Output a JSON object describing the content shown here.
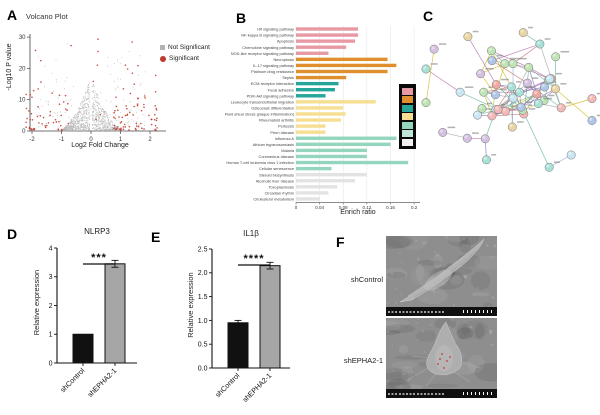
{
  "panels": {
    "a": {
      "label": "A",
      "title": "Volcano Plot"
    },
    "b": {
      "label": "B",
      "legend_colors": [
        "#e89aa4",
        "#df8f2d",
        "#26a69a",
        "#f6de92",
        "#93d5bd",
        "#bfe6d8",
        "#f2f2f2"
      ]
    },
    "c": {
      "label": "C",
      "network": {
        "seed": 7,
        "node_count": 48,
        "cluster_count": 34,
        "node_colors": [
          "#bfe3b4",
          "#f4b8b8",
          "#aec6e8",
          "#e8d5a3",
          "#a8e0d8",
          "#d4c1e0",
          "#f0a8a0",
          "#c9e6f2"
        ],
        "edge_colors": [
          "#c8b400",
          "#b05fa0",
          "#7a5fb5",
          "#4fae8a",
          "#9a9a9a",
          "#cc6666",
          "#88aacc"
        ]
      }
    },
    "d": {
      "label": "D"
    },
    "e": {
      "label": "E"
    },
    "f": {
      "label": "F",
      "images": [
        {
          "label": "shControl",
          "has_marks": false
        },
        {
          "label": "shEPHA2-1",
          "has_marks": true
        }
      ],
      "mark_color": "#cc2222"
    }
  },
  "chart_data": [
    {
      "type": "scatter",
      "title": "Volcano Plot",
      "xlabel": "Log2 Fold Change",
      "ylabel": "-Log10 P value",
      "xlim": [
        -2.3,
        2.5
      ],
      "ylim": [
        0,
        32
      ],
      "xticks": [
        "-2",
        "-1",
        "0",
        "1",
        "2"
      ],
      "xtick_vals": [
        -2,
        -1,
        0,
        1,
        2
      ],
      "yticks": [
        "0",
        "10",
        "20",
        "30"
      ],
      "ytick_vals": [
        0,
        10,
        20,
        30
      ],
      "series": [
        {
          "name": "Not Significant",
          "color": "#b3b3b3",
          "n_points": 1100
        },
        {
          "name": "Significant",
          "color": "#c0392b",
          "n_points": 140
        }
      ],
      "seed": 42
    },
    {
      "type": "bar",
      "orientation": "horizontal",
      "xlabel": "Enrich ratio",
      "xlim": [
        0,
        0.21
      ],
      "xticks": [
        "0",
        "0.04",
        "0.08",
        "0.12",
        "0.16",
        "0.2"
      ],
      "xtick_vals": [
        0,
        0.04,
        0.08,
        0.12,
        0.16,
        0.2
      ],
      "categories": [
        "Hif signaling pathway",
        "NF-kappa B signaling pathway",
        "Apoptosis",
        "Chemokine signaling pathway",
        "NOD-like receptor signaling pathway",
        "Necroptosis",
        "IL-17 signaling pathway",
        "Platinum drug resistance",
        "Sepsis",
        "ECM-receptor interaction",
        "Focal adhesion",
        "PI3K-Akt signaling pathway",
        "Leukocyte transendothelial migration",
        "Osteoclast differentiation",
        "Fluid shear stress (plaque inflammation)",
        "Rheumatoid arthritis",
        "Pertussis",
        "Prion disease",
        "Influenza A",
        "African trypanosomiasis",
        "Malaria",
        "Coronavirus disease",
        "Human T-cell leukemia virus 1 infection",
        "Cellular senescence",
        "Steroid biosynthesis",
        "Alcoholic liver disease",
        "Toxoplasmosis",
        "Circadian rhythm",
        "Cholesterol metabolism"
      ],
      "values": [
        0.105,
        0.105,
        0.1,
        0.085,
        0.055,
        0.155,
        0.17,
        0.155,
        0.085,
        0.072,
        0.066,
        0.05,
        0.135,
        0.08,
        0.084,
        0.076,
        0.05,
        0.05,
        0.17,
        0.16,
        0.12,
        0.12,
        0.19,
        0.06,
        0.12,
        0.1,
        0.07,
        0.055,
        0.04
      ],
      "colors": [
        "#e89aa4",
        "#e89aa4",
        "#e89aa4",
        "#e89aa4",
        "#e89aa4",
        "#df8f2d",
        "#df8f2d",
        "#df8f2d",
        "#df8f2d",
        "#26a69a",
        "#26a69a",
        "#26a69a",
        "#f6de92",
        "#f6de92",
        "#f6de92",
        "#f6de92",
        "#f6de92",
        "#f6de92",
        "#93d5bd",
        "#93d5bd",
        "#93d5bd",
        "#93d5bd",
        "#93d5bd",
        "#93d5bd",
        "#e3e3e3",
        "#e3e3e3",
        "#e3e3e3",
        "#e3e3e3",
        "#e3e3e3"
      ]
    },
    {
      "type": "bar",
      "title": "NLRP3",
      "ylabel": "Relative expression",
      "categories": [
        "shControl",
        "shEPHA2-1"
      ],
      "values": [
        1.0,
        3.45
      ],
      "errors": [
        0.0,
        0.12
      ],
      "bar_colors": [
        "#111111",
        "#a6a6a6"
      ],
      "ylim": [
        0,
        4
      ],
      "yticks": [
        "0",
        "1",
        "2",
        "3",
        "4"
      ],
      "ytick_vals": [
        0,
        1,
        2,
        3,
        4
      ],
      "significance": "***"
    },
    {
      "type": "bar",
      "title": "IL1β",
      "ylabel": "Relative expression",
      "categories": [
        "shControl",
        "shEPHA2-1"
      ],
      "values": [
        0.95,
        2.15
      ],
      "errors": [
        0.05,
        0.07
      ],
      "bar_colors": [
        "#111111",
        "#a6a6a6"
      ],
      "ylim": [
        0,
        2.5
      ],
      "yticks": [
        "0.0",
        "0.5",
        "1.0",
        "1.5",
        "2.0",
        "2.5"
      ],
      "ytick_vals": [
        0,
        0.5,
        1,
        1.5,
        2,
        2.5
      ],
      "significance": "****"
    }
  ]
}
